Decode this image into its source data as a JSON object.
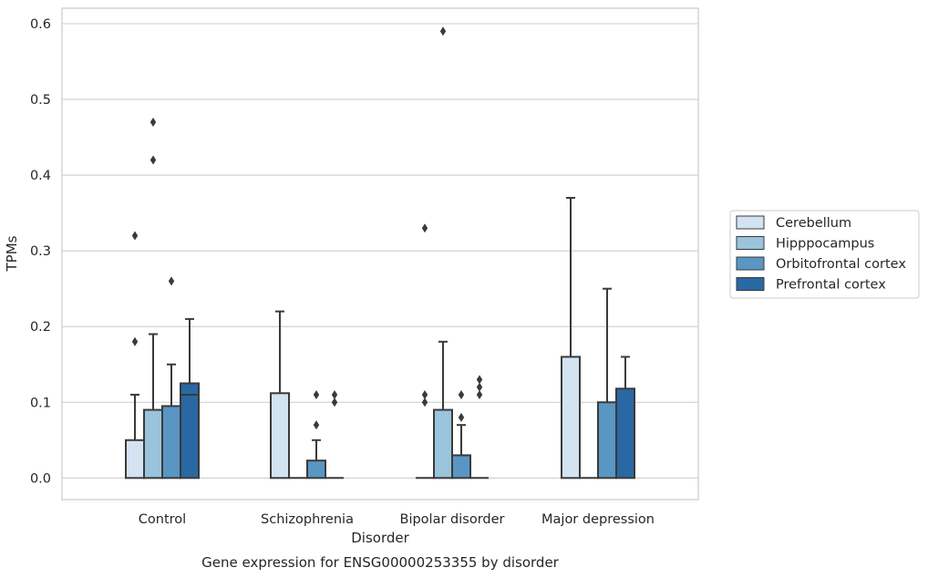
{
  "chart_data": {
    "type": "box",
    "title": "",
    "caption": "Gene expression for ENSG00000253355 by disorder",
    "xlabel": "Disorder",
    "ylabel": "TPMs",
    "ylim": [
      -0.028,
      0.622
    ],
    "yticks": [
      0.0,
      0.1,
      0.2,
      0.3,
      0.4,
      0.5,
      0.6
    ],
    "ytick_labels": [
      "0.0",
      "0.1",
      "0.2",
      "0.3",
      "0.4",
      "0.5",
      "0.6"
    ],
    "grid": "horizontal",
    "legend_position": "right-center",
    "categories": [
      "Control",
      "Schizophrenia",
      "Bipolar disorder",
      "Major depression"
    ],
    "series": [
      {
        "name": "Cerebellum",
        "color": "#d3e3f1",
        "boxes": [
          {
            "min": 0.0,
            "q1": 0.0,
            "median": 0.0,
            "q3": 0.05,
            "max": 0.11,
            "outliers": [
              0.18,
              0.32
            ]
          },
          {
            "min": 0.0,
            "q1": 0.0,
            "median": 0.0,
            "q3": 0.112,
            "max": 0.22,
            "outliers": []
          },
          {
            "min": 0.0,
            "q1": 0.0,
            "median": 0.0,
            "q3": 0.0,
            "max": 0.0,
            "outliers": [
              0.1,
              0.11,
              0.33
            ]
          },
          {
            "min": 0.0,
            "q1": 0.0,
            "median": 0.0,
            "q3": 0.16,
            "max": 0.37,
            "outliers": []
          }
        ]
      },
      {
        "name": "Hipppocampus",
        "color": "#9ac3dc",
        "boxes": [
          {
            "min": 0.0,
            "q1": 0.0,
            "median": 0.0,
            "q3": 0.09,
            "max": 0.19,
            "outliers": [
              0.42,
              0.47
            ]
          },
          {
            "min": 0.0,
            "q1": 0.0,
            "median": 0.0,
            "q3": 0.0,
            "max": 0.0,
            "outliers": []
          },
          {
            "min": 0.0,
            "q1": 0.0,
            "median": 0.0,
            "q3": 0.09,
            "max": 0.18,
            "outliers": [
              0.59
            ]
          },
          {
            "min": 0.0,
            "q1": 0.0,
            "median": 0.0,
            "q3": 0.0,
            "max": 0.0,
            "outliers": []
          }
        ]
      },
      {
        "name": "Orbitofrontal cortex",
        "color": "#5a96c4",
        "boxes": [
          {
            "min": 0.0,
            "q1": 0.0,
            "median": 0.0,
            "q3": 0.095,
            "max": 0.15,
            "outliers": [
              0.26
            ]
          },
          {
            "min": 0.0,
            "q1": 0.0,
            "median": 0.0,
            "q3": 0.023,
            "max": 0.05,
            "outliers": [
              0.07,
              0.11
            ]
          },
          {
            "min": 0.0,
            "q1": 0.0,
            "median": 0.0,
            "q3": 0.03,
            "max": 0.07,
            "outliers": [
              0.08,
              0.11
            ]
          },
          {
            "min": 0.0,
            "q1": 0.0,
            "median": 0.0,
            "q3": 0.1,
            "max": 0.25,
            "outliers": []
          }
        ]
      },
      {
        "name": "Prefrontal cortex",
        "color": "#2a68a3",
        "boxes": [
          {
            "min": 0.0,
            "q1": 0.0,
            "median": 0.11,
            "q3": 0.125,
            "max": 0.21,
            "outliers": []
          },
          {
            "min": 0.0,
            "q1": 0.0,
            "median": 0.0,
            "q3": 0.0,
            "max": 0.0,
            "outliers": [
              0.1,
              0.11
            ]
          },
          {
            "min": 0.0,
            "q1": 0.0,
            "median": 0.0,
            "q3": 0.0,
            "max": 0.0,
            "outliers": [
              0.11,
              0.12,
              0.13
            ]
          },
          {
            "min": 0.0,
            "q1": 0.0,
            "median": 0.0,
            "q3": 0.118,
            "max": 0.16,
            "outliers": []
          }
        ]
      }
    ]
  },
  "colors": {
    "grid": "#cccccc",
    "frame": "#cccccc",
    "box_edge": "#3a3a3a",
    "outlier": "#3a3a3a",
    "text": "#262626"
  }
}
